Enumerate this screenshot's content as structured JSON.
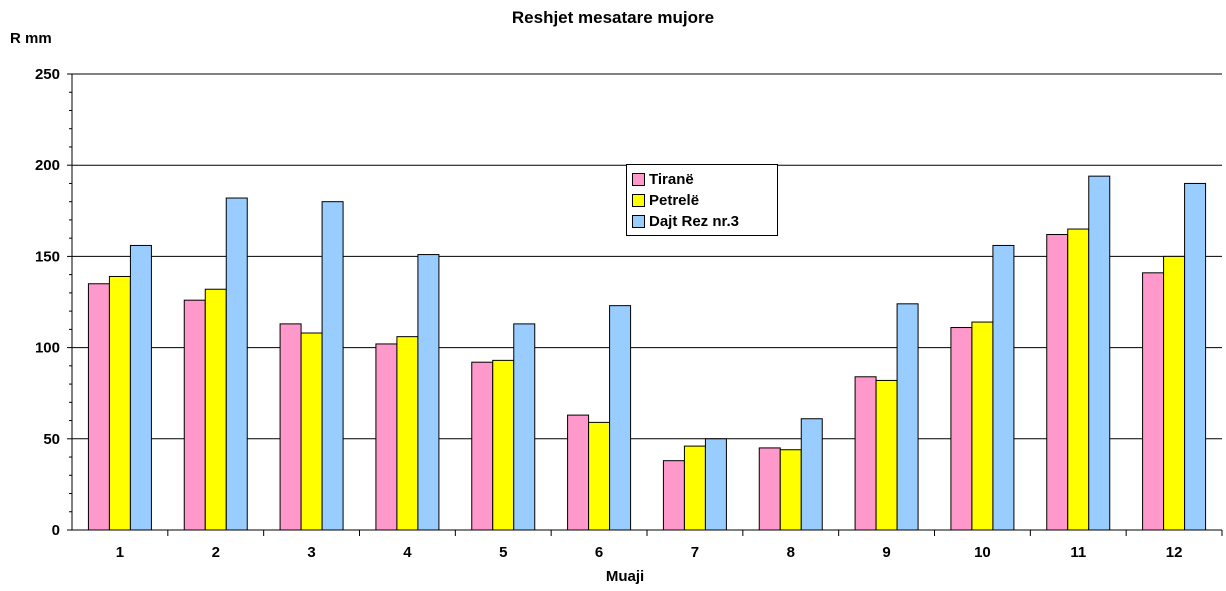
{
  "chart_data": {
    "type": "bar",
    "title": "Reshjet mesatare mujore",
    "ylabel": "R mm",
    "xlabel": "Muaji",
    "ylim": [
      0,
      250
    ],
    "yticks": [
      0,
      50,
      100,
      150,
      200,
      250
    ],
    "categories": [
      "1",
      "2",
      "3",
      "4",
      "5",
      "6",
      "7",
      "8",
      "9",
      "10",
      "11",
      "12"
    ],
    "series": [
      {
        "name": "Tiranë",
        "color": "#ff99cc",
        "values": [
          135,
          126,
          113,
          102,
          92,
          63,
          38,
          45,
          84,
          111,
          162,
          141
        ]
      },
      {
        "name": "Petrelë",
        "color": "#ffff00",
        "values": [
          139,
          132,
          108,
          106,
          93,
          59,
          46,
          44,
          82,
          114,
          165,
          150
        ]
      },
      {
        "name": "Dajt Rez nr.3",
        "color": "#99ccff",
        "values": [
          156,
          182,
          180,
          151,
          113,
          123,
          50,
          61,
          124,
          156,
          194,
          190
        ]
      }
    ],
    "grid": true,
    "legend_position": "top-center"
  }
}
